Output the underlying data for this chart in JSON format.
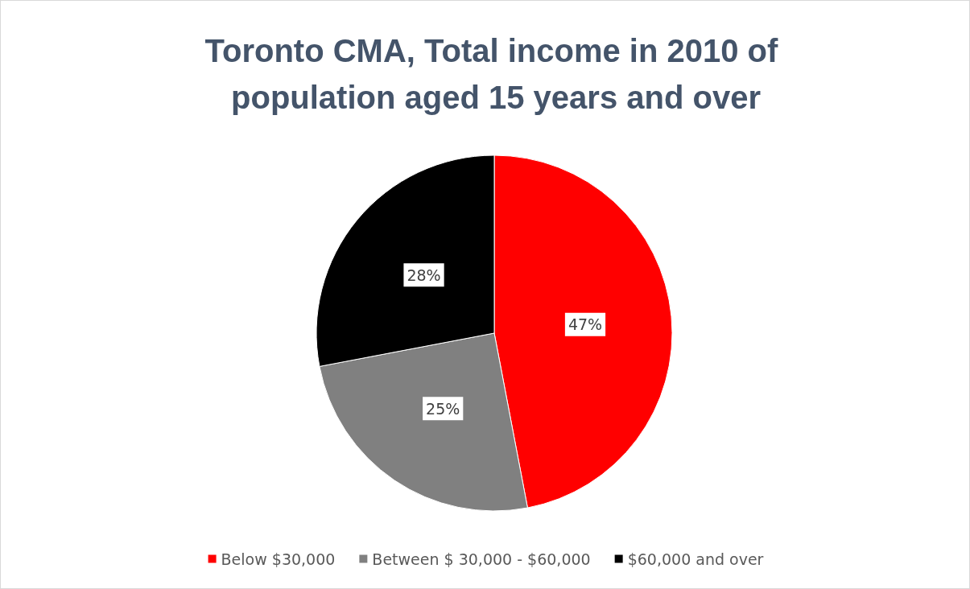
{
  "chart_data": {
    "type": "pie",
    "title": "Toronto CMA, Total income in 2010 of population aged 15 years and over",
    "categories": [
      "Below $30,000",
      "Between $ 30,000 - $60,000",
      "$60,000 and over"
    ],
    "values": [
      47,
      25,
      28
    ],
    "value_labels": [
      "47%",
      "25%",
      "28%"
    ],
    "colors": [
      "#ff0000",
      "#808080",
      "#000000"
    ],
    "legend": "bottom"
  }
}
